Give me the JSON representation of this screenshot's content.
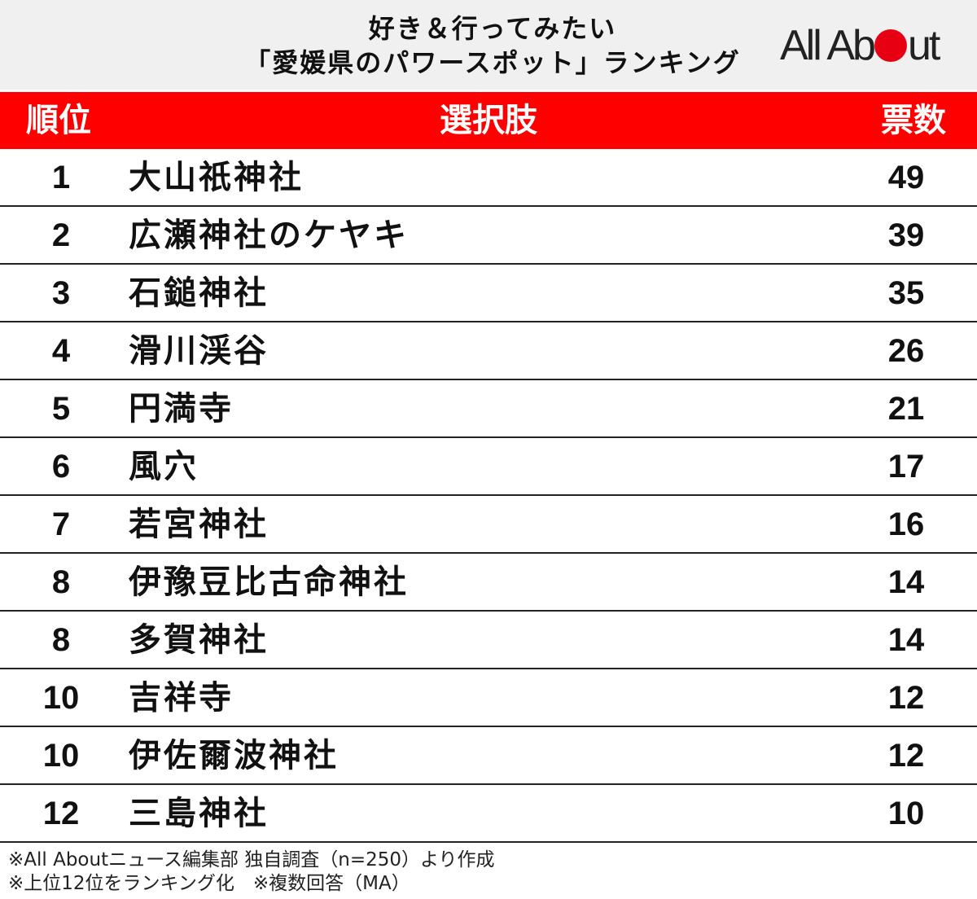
{
  "chart_data": {
    "type": "table",
    "title_line1": "好き＆行ってみたい",
    "title_line2": "「愛媛県のパワースポット」ランキング",
    "logo": "All About",
    "columns": [
      "順位",
      "選択肢",
      "票数"
    ],
    "rows": [
      {
        "rank": "1",
        "choice": "大山祇神社",
        "votes": "49"
      },
      {
        "rank": "2",
        "choice": "広瀬神社のケヤキ",
        "votes": "39"
      },
      {
        "rank": "3",
        "choice": "石鎚神社",
        "votes": "35"
      },
      {
        "rank": "4",
        "choice": "滑川渓谷",
        "votes": "26"
      },
      {
        "rank": "5",
        "choice": "円満寺",
        "votes": "21"
      },
      {
        "rank": "6",
        "choice": "風穴",
        "votes": "17"
      },
      {
        "rank": "7",
        "choice": "若宮神社",
        "votes": "16"
      },
      {
        "rank": "8",
        "choice": "伊豫豆比古命神社",
        "votes": "14"
      },
      {
        "rank": "8",
        "choice": "多賀神社",
        "votes": "14"
      },
      {
        "rank": "10",
        "choice": "吉祥寺",
        "votes": "12"
      },
      {
        "rank": "10",
        "choice": "伊佐爾波神社",
        "votes": "12"
      },
      {
        "rank": "12",
        "choice": "三島神社",
        "votes": "10"
      }
    ],
    "notes": [
      "※All Aboutニュース編集部 独自調査（n=250）より作成",
      "※上位12位をランキング化　※複数回答（MA）"
    ]
  },
  "colors": {
    "header_bar": "#ff0000",
    "logo_dot": "#e60012",
    "title_background": "#f0f0f0"
  }
}
